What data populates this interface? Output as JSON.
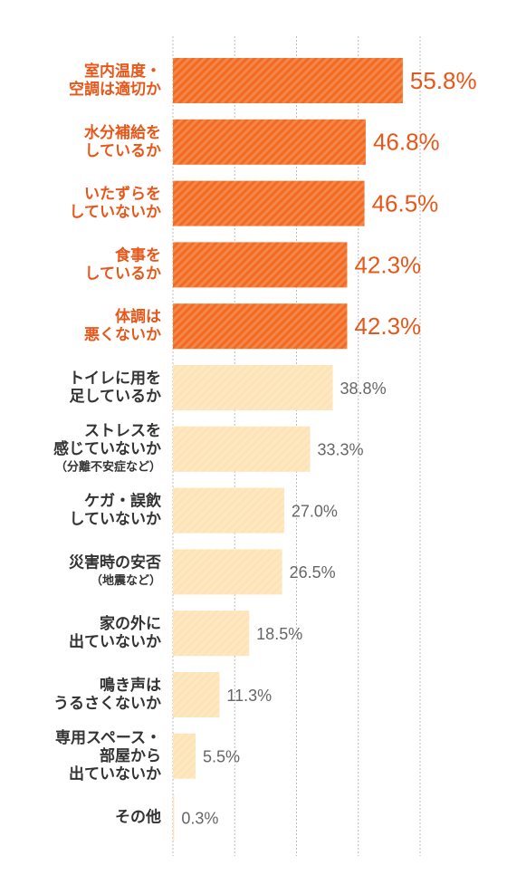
{
  "chart_data": {
    "type": "barh",
    "categories": [
      [
        "室内温度・",
        "空調は適切か"
      ],
      [
        "水分補給を",
        "しているか"
      ],
      [
        "いたずらを",
        "していないか"
      ],
      [
        "食事を",
        "しているか"
      ],
      [
        "体調は",
        "悪くないか"
      ],
      [
        "トイレに用を",
        "足しているか"
      ],
      [
        "ストレスを",
        "感じていないか",
        "（分離不安症など）"
      ],
      [
        "ケガ・誤飲",
        "していないか"
      ],
      [
        "災害時の安否",
        "（地震など）"
      ],
      [
        "家の外に",
        "出ていないか"
      ],
      [
        "鳴き声は",
        "うるさくないか"
      ],
      [
        "専用スペース・",
        "部屋から",
        "出ていないか"
      ],
      [
        "その他"
      ]
    ],
    "values": [
      55.8,
      46.8,
      46.5,
      42.3,
      42.3,
      38.8,
      33.3,
      27.0,
      26.5,
      18.5,
      11.3,
      5.5,
      0.3
    ],
    "value_labels": [
      "55.8%",
      "46.8%",
      "46.5%",
      "42.3%",
      "42.3%",
      "38.8%",
      "33.3%",
      "27.0%",
      "26.5%",
      "18.5%",
      "11.3%",
      "5.5%",
      "0.3%"
    ],
    "colors": [
      "#f26b21",
      "#f26b21",
      "#f26b21",
      "#f26b21",
      "#f26b21",
      "#fde3b5",
      "#fde3b5",
      "#fde3b5",
      "#fde3b5",
      "#fde3b5",
      "#fde3b5",
      "#fde3b5",
      "#fde3b5"
    ],
    "text_colors": [
      "#e8571a",
      "#e8571a",
      "#e8571a",
      "#e8571a",
      "#e8571a",
      "#333333",
      "#333333",
      "#333333",
      "#333333",
      "#333333",
      "#333333",
      "#333333",
      "#333333"
    ],
    "xlim": [
      0,
      60
    ],
    "xticks": [
      0,
      15,
      30,
      45,
      60
    ],
    "grid": true
  }
}
